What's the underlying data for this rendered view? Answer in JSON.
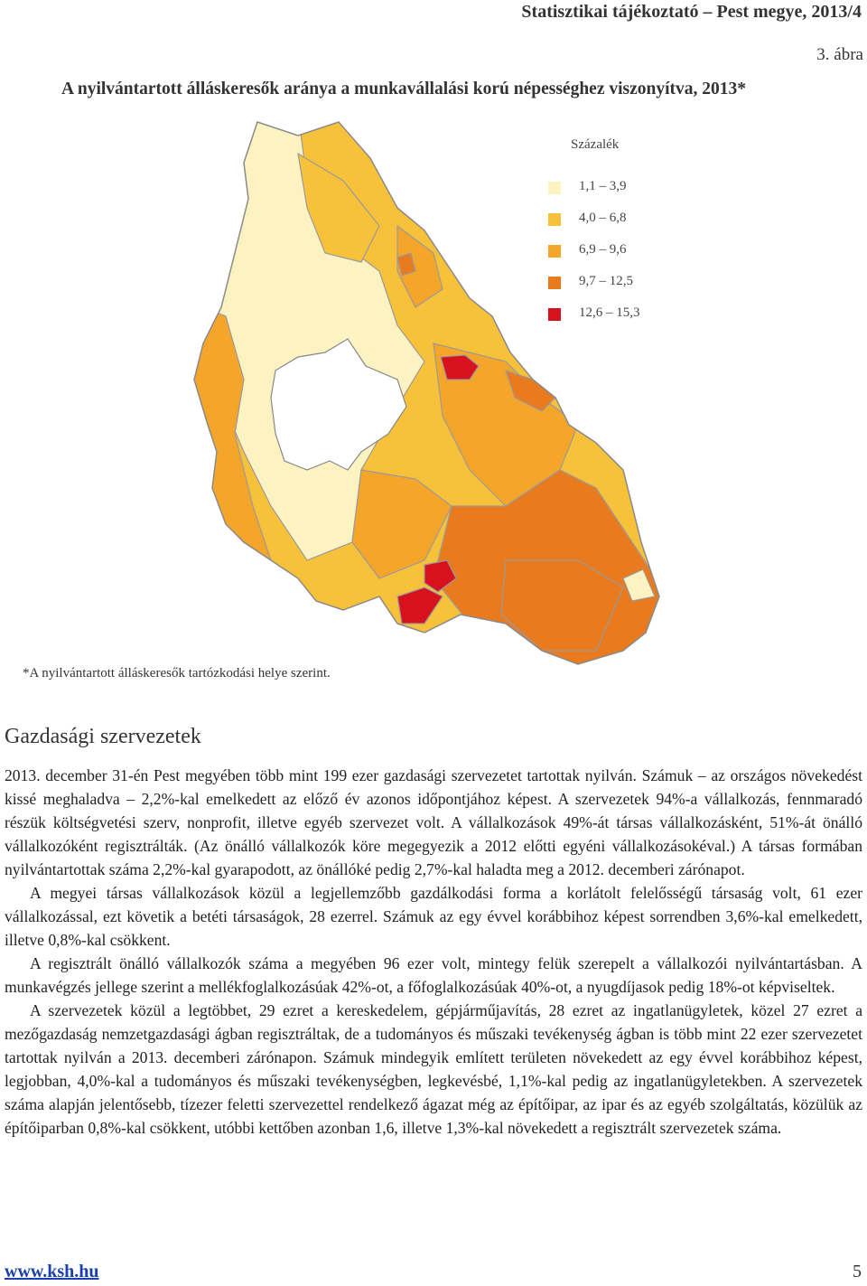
{
  "header": {
    "running_title": "Statisztikai tájékoztató – Pest megye, 2013/4",
    "figure_number": "3. ábra",
    "figure_title": "A nyilvántartott álláskeresők aránya a munkavállalási korú népességhez viszonyítva, 2013*"
  },
  "map": {
    "legend_title": "Százalék",
    "legend": [
      {
        "label": "1,1 – 3,9",
        "color": "#fdf3c2"
      },
      {
        "label": "4,0 – 6,8",
        "color": "#f8c13a"
      },
      {
        "label": "6,9 – 9,6",
        "color": "#f4a52a"
      },
      {
        "label": "9,7 – 12,5",
        "color": "#e97a1e"
      },
      {
        "label": "12,6 – 15,3",
        "color": "#d8111f"
      }
    ],
    "footnote": "*A nyilvántartott álláskeresők tartózkodási helye szerint."
  },
  "section": {
    "heading": "Gazdasági szervezetek",
    "paragraphs": [
      "2013. december 31-én Pest megyében több mint 199 ezer gazdasági szervezetet tartottak nyilván. Számuk – az országos növekedést kissé meghaladva – 2,2%-kal emelkedett az előző év azonos időpontjához képest. A szervezetek 94%-a vállalkozás, fennmaradó részük költségvetési szerv, nonprofit, illetve egyéb szervezet volt. A vállalkozások 49%-át társas vállalkozásként, 51%-át önálló vállalkozóként regisztrálták. (Az önálló vállalkozók köre megegyezik a 2012 előtti egyéni vállalkozásokéval.) A társas formában nyilvántartottak száma 2,2%-kal gyarapodott, az önállóké pedig 2,7%-kal haladta meg a 2012. decemberi zárónapot.",
      "A megyei társas vállalkozások közül a legjellemzőbb gazdálkodási forma a korlátolt felelősségű társaság volt, 61 ezer vállalkozással, ezt követik a betéti társaságok, 28 ezerrel. Számuk az egy évvel korábbihoz képest sorrendben 3,6%-kal emelkedett, illetve 0,8%-kal csökkent.",
      "A regisztrált önálló vállalkozók száma a megyében 96 ezer volt, mintegy felük szerepelt a vállalkozói nyilvántartásban. A munkavégzés jellege szerint a mellékfoglalkozásúak 42%-ot, a főfoglalkozásúak 40%-ot, a nyugdíjasok pedig 18%-ot képviseltek.",
      "A szervezetek közül a legtöbbet, 29 ezret a kereskedelem, gépjárműjavítás, 28 ezret az ingatlanügyletek, közel 27 ezret a mezőgazdaság nemzetgazdasági ágban regisztráltak, de a tudományos és műszaki tevékenység ágban is több mint 22 ezer szervezetet tartottak nyilván a 2013. decemberi zárónapon. Számuk mindegyik említett területen növekedett az egy évvel korábbihoz képest, legjobban, 4,0%-kal a tudományos és műszaki tevékenységben, legkevésbé, 1,1%-kal pedig az ingatlanügyletekben. A szervezetek száma alapján jelentősebb, tízezer feletti szervezettel rendelkező ágazat még az építőipar, az ipar és az egyéb szolgáltatás, közülük az építőiparban 0,8%-kal csökkent, utóbbi kettőben azonban 1,6, illetve 1,3%-kal növekedett a regisztrált szervezetek száma."
    ]
  },
  "footer": {
    "link": "www.ksh.hu",
    "page": "5"
  }
}
